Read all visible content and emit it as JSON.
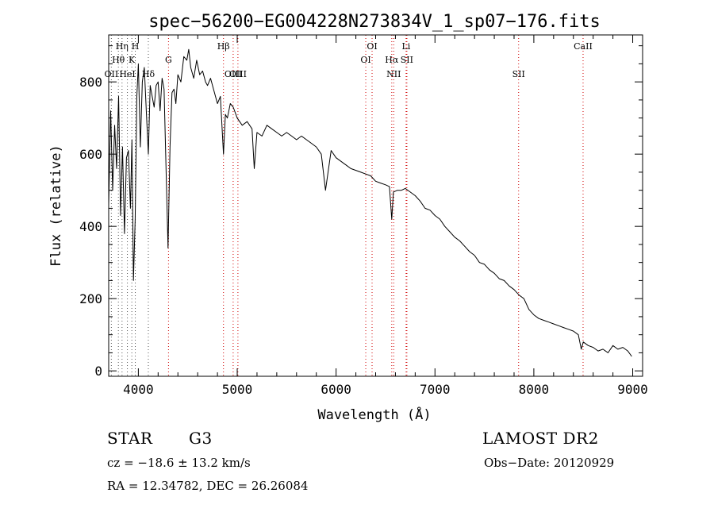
{
  "chart_data": {
    "type": "line",
    "title": "spec−56200−EG004228N273834V_1_sp07−176.fits",
    "xlabel": "Wavelength (Å)",
    "ylabel": "Flux (relative)",
    "xlim": [
      3700,
      9100
    ],
    "ylim": [
      -15,
      930
    ],
    "xticks": [
      4000,
      5000,
      6000,
      7000,
      8000,
      9000
    ],
    "yticks": [
      0,
      200,
      400,
      600,
      800
    ],
    "grid": false,
    "series": [
      {
        "x": [
          3700,
          3720,
          3740,
          3760,
          3780,
          3800,
          3820,
          3840,
          3860,
          3880,
          3900,
          3920,
          3935,
          3950,
          3968,
          3985,
          4000,
          4020,
          4040,
          4060,
          4080,
          4101,
          4120,
          4140,
          4160,
          4180,
          4200,
          4220,
          4240,
          4260,
          4280,
          4300,
          4320,
          4340,
          4360,
          4380,
          4400,
          4430,
          4460,
          4490,
          4510,
          4530,
          4560,
          4590,
          4620,
          4650,
          4680,
          4700,
          4730,
          4760,
          4800,
          4830,
          4861,
          4880,
          4900,
          4930,
          4960,
          5000,
          5050,
          5100,
          5150,
          5172,
          5200,
          5250,
          5300,
          5350,
          5400,
          5450,
          5500,
          5550,
          5600,
          5650,
          5700,
          5750,
          5800,
          5850,
          5893,
          5950,
          6000,
          6050,
          6100,
          6150,
          6200,
          6250,
          6300,
          6350,
          6400,
          6450,
          6500,
          6540,
          6563,
          6580,
          6620,
          6660,
          6700,
          6750,
          6800,
          6850,
          6900,
          6950,
          7000,
          7050,
          7100,
          7150,
          7200,
          7250,
          7300,
          7350,
          7400,
          7450,
          7500,
          7550,
          7600,
          7650,
          7700,
          7750,
          7800,
          7850,
          7900,
          7950,
          8000,
          8050,
          8100,
          8150,
          8200,
          8250,
          8300,
          8350,
          8400,
          8450,
          8480,
          8500,
          8550,
          8600,
          8650,
          8700,
          8750,
          8800,
          8850,
          8900,
          8950,
          8990
        ],
        "y": [
          460,
          720,
          500,
          680,
          560,
          760,
          430,
          620,
          380,
          590,
          610,
          450,
          640,
          250,
          420,
          760,
          850,
          620,
          800,
          840,
          720,
          600,
          790,
          760,
          730,
          790,
          800,
          720,
          810,
          780,
          560,
          340,
          620,
          770,
          780,
          740,
          820,
          800,
          870,
          860,
          890,
          840,
          810,
          860,
          820,
          830,
          800,
          790,
          810,
          780,
          740,
          760,
          600,
          710,
          700,
          740,
          730,
          700,
          680,
          690,
          670,
          560,
          660,
          650,
          680,
          670,
          660,
          650,
          660,
          650,
          640,
          650,
          640,
          630,
          620,
          600,
          500,
          610,
          590,
          580,
          570,
          560,
          555,
          550,
          545,
          540,
          525,
          520,
          515,
          510,
          420,
          495,
          500,
          500,
          505,
          495,
          485,
          470,
          450,
          445,
          430,
          420,
          400,
          385,
          370,
          360,
          345,
          330,
          320,
          300,
          295,
          280,
          270,
          255,
          250,
          235,
          225,
          210,
          200,
          170,
          155,
          145,
          140,
          135,
          130,
          125,
          120,
          115,
          110,
          100,
          60,
          80,
          70,
          65,
          55,
          60,
          50,
          70,
          60,
          65,
          55,
          40
        ]
      }
    ],
    "lines": [
      {
        "label": "OII",
        "x": 3727,
        "row": 3
      },
      {
        "label": "Hθ",
        "x": 3798,
        "row": 2
      },
      {
        "label": "Hη",
        "x": 3835,
        "row": 1
      },
      {
        "label": "HeI",
        "x": 3889,
        "row": 3
      },
      {
        "label": "K",
        "x": 3934,
        "row": 2
      },
      {
        "label": "H",
        "x": 3969,
        "row": 1
      },
      {
        "label": "Hδ",
        "x": 4101,
        "row": 3
      },
      {
        "label": "G",
        "x": 4305,
        "row": 2
      },
      {
        "label": "Hβ",
        "x": 4861,
        "row": 1
      },
      {
        "label": "OIII",
        "x": 4959,
        "row": 3
      },
      {
        "label": "OIII",
        "x": 5007,
        "row": 3
      },
      {
        "label": "OI",
        "x": 6300,
        "row": 2
      },
      {
        "label": "OI",
        "x": 6364,
        "row": 1
      },
      {
        "label": "Hα",
        "x": 6563,
        "row": 2
      },
      {
        "label": "NII",
        "x": 6583,
        "row": 3
      },
      {
        "label": "Li",
        "x": 6708,
        "row": 1
      },
      {
        "label": "SII",
        "x": 6716,
        "row": 2
      },
      {
        "label": "SII",
        "x": 7846,
        "row": 3
      },
      {
        "label": "CaII",
        "x": 8498,
        "row": 1
      }
    ]
  },
  "info": {
    "object_class": "STAR",
    "subclass": "G3",
    "survey": "LAMOST DR2",
    "cz": "cz = −18.6 ± 13.2 km/s",
    "obs_date": "Obs−Date: 20120929",
    "coords": "RA =  12.34782, DEC =  26.26084"
  },
  "colors": {
    "axis": "#000000",
    "spectrum": "#000000",
    "linemark_red": "#d00000",
    "linemark_black": "#555555"
  }
}
